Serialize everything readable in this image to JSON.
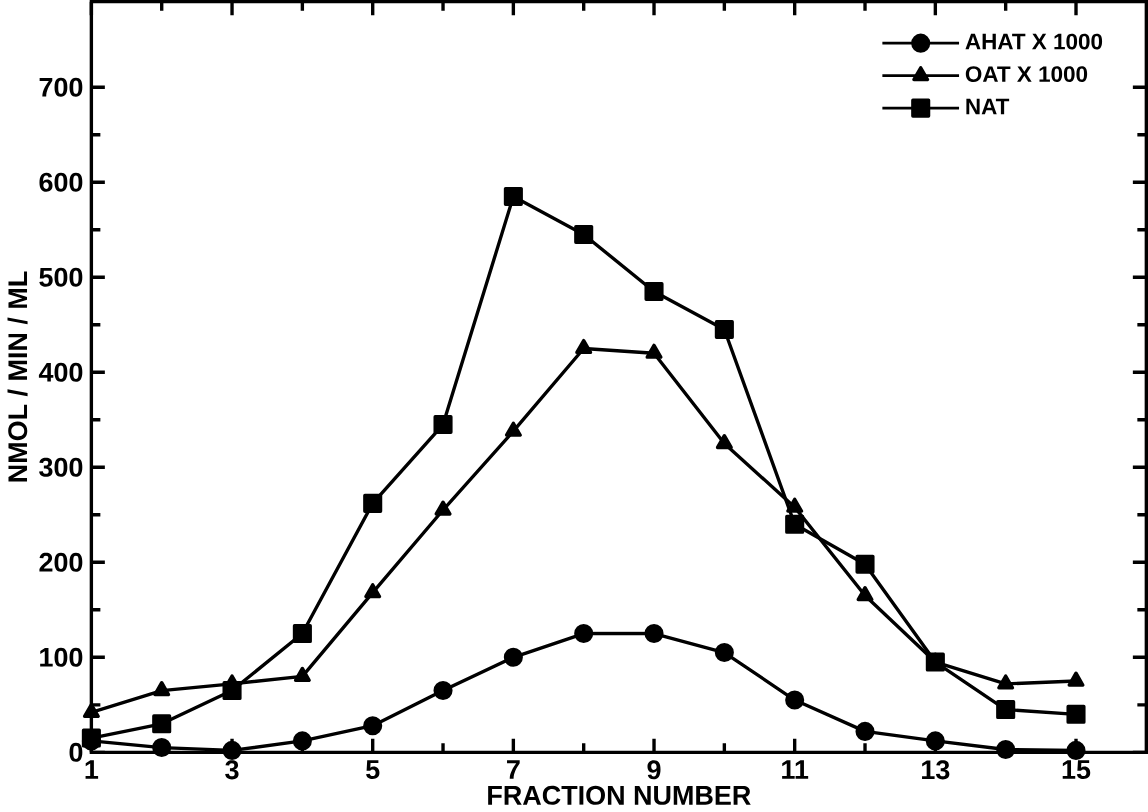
{
  "chart_data": {
    "type": "line",
    "xlabel": "FRACTION NUMBER",
    "ylabel": "NMOL / MIN / ML",
    "x": [
      1,
      2,
      3,
      4,
      5,
      6,
      7,
      8,
      9,
      10,
      11,
      12,
      13,
      14,
      15
    ],
    "series": [
      {
        "name": "AHAT X 1000",
        "color": "#000000",
        "marker": "circle",
        "values": [
          12,
          5,
          2,
          12,
          28,
          65,
          100,
          125,
          125,
          105,
          55,
          22,
          12,
          3,
          2
        ]
      },
      {
        "name": "OAT X 1000",
        "color": "#000000",
        "marker": "triangle",
        "values": [
          42,
          65,
          72,
          80,
          168,
          255,
          338,
          425,
          420,
          325,
          258,
          165,
          95,
          72,
          75
        ]
      },
      {
        "name": "NAT",
        "color": "#000000",
        "marker": "square",
        "values": [
          15,
          30,
          65,
          125,
          262,
          345,
          585,
          545,
          485,
          445,
          240,
          198,
          95,
          45,
          40
        ]
      }
    ],
    "xlim": [
      1,
      16
    ],
    "ylim": [
      0,
      790
    ],
    "xticks": [
      1,
      3,
      5,
      7,
      9,
      11,
      13,
      15
    ],
    "yticks": [
      0,
      100,
      200,
      300,
      400,
      500,
      600,
      700
    ],
    "grid": false,
    "legend": "top right",
    "line_style": "solid"
  }
}
